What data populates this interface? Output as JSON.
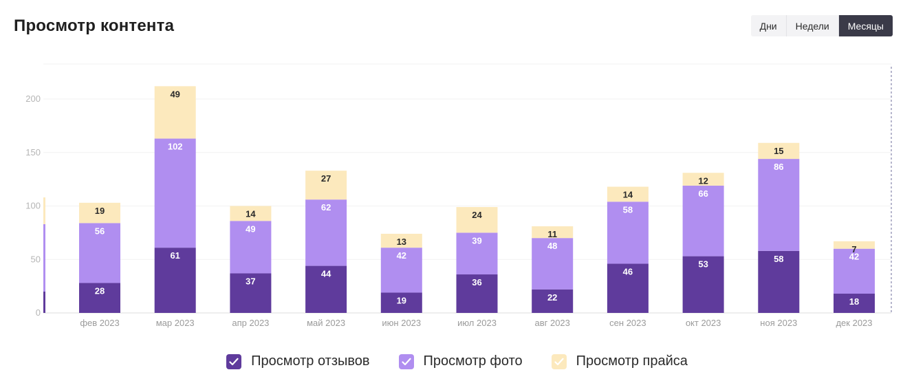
{
  "header": {
    "title": "Просмотр контента"
  },
  "period_toggle": {
    "options": [
      {
        "label": "Дни",
        "active": false
      },
      {
        "label": "Недели",
        "active": false
      },
      {
        "label": "Месяцы",
        "active": true
      }
    ]
  },
  "chart_data": {
    "type": "bar",
    "stacked": true,
    "title": "Просмотр контента",
    "xlabel": "",
    "ylabel": "",
    "ylim": [
      0,
      230
    ],
    "yticks": [
      0,
      50,
      100,
      150,
      200
    ],
    "grid": true,
    "legend_position": "bottom",
    "categories": [
      "фев 2023",
      "мар 2023",
      "апр 2023",
      "май 2023",
      "июн 2023",
      "июл 2023",
      "авг 2023",
      "сен 2023",
      "окт 2023",
      "ноя 2023",
      "дек 2023"
    ],
    "series": [
      {
        "name": "Просмотр отзывов",
        "color": "#5f3b9c",
        "label_color": "#ffffff",
        "values": [
          28,
          61,
          37,
          44,
          19,
          36,
          22,
          46,
          53,
          58,
          18
        ]
      },
      {
        "name": "Просмотр фото",
        "color": "#b08ef0",
        "label_color": "#ffffff",
        "values": [
          56,
          102,
          49,
          62,
          42,
          39,
          48,
          58,
          66,
          86,
          42
        ]
      },
      {
        "name": "Просмотр прайса",
        "color": "#fce9bd",
        "label_color": "#2a2a2a",
        "values": [
          19,
          49,
          14,
          27,
          13,
          24,
          11,
          14,
          12,
          15,
          7
        ]
      }
    ],
    "partial_left_bar": {
      "values": [
        20,
        63,
        25
      ]
    }
  },
  "legend": {
    "items": [
      {
        "label": "Просмотр отзывов",
        "color": "#5f3b9c",
        "check_color": "#ffffff"
      },
      {
        "label": "Просмотр фото",
        "color": "#b08ef0",
        "check_color": "#ffffff"
      },
      {
        "label": "Просмотр прайса",
        "color": "#fce9bd",
        "check_color": "#ffffff"
      }
    ]
  }
}
